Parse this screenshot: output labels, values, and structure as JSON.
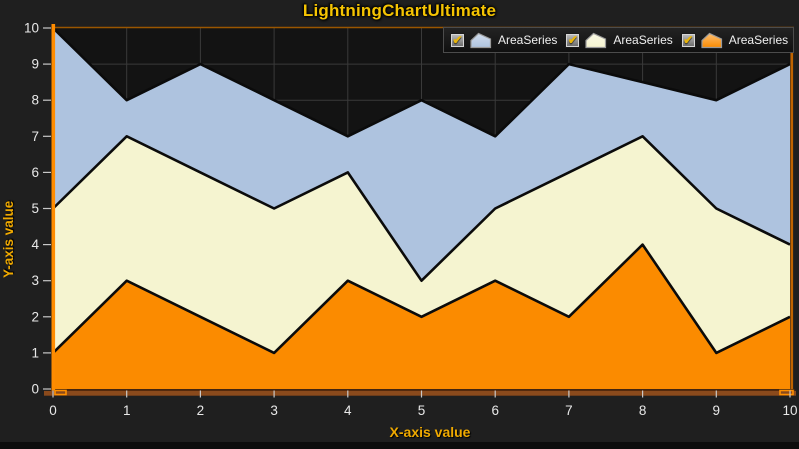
{
  "title": "LightningChartUltimate",
  "colors": {
    "outer_bg": "#1F1F1F",
    "plot_bg": "#131313",
    "grid": "#3A3A3A",
    "title_text": "#F5C402",
    "axis_label_text": "#EFA900",
    "tick_label_text": "#E8E8E8",
    "tick_mark": "#C8C8C8",
    "y_axis_line": "#FF8C00",
    "top_border": "#9A5600",
    "right_border": "#C06400",
    "x_axis_line_dark": "#53280A",
    "x_axis_strip": "#8A4A1C",
    "axis_nib": "#FF9000",
    "series_border": "#0B0B0B",
    "legend_text": "#F0F0F0",
    "checkmark": "#E9B50B"
  },
  "chart_data": {
    "type": "area",
    "mode": "overlapping",
    "title": "LightningChartUltimate",
    "xlabel": "X-axis value",
    "ylabel": "Y-axis value",
    "xlim": [
      0,
      10
    ],
    "ylim": [
      0,
      10
    ],
    "x_ticks": [
      0,
      1,
      2,
      3,
      4,
      5,
      6,
      7,
      8,
      9,
      10
    ],
    "y_ticks": [
      0,
      1,
      2,
      3,
      4,
      5,
      6,
      7,
      8,
      9,
      10
    ],
    "grid": true,
    "legend_position": "top-right",
    "x": [
      0,
      1,
      2,
      3,
      4,
      5,
      6,
      7,
      8,
      9,
      10
    ],
    "series": [
      {
        "name": "AreaSeries",
        "color": "#AEC3DF",
        "checked": true,
        "values": [
          10,
          8,
          9,
          8,
          7,
          8,
          7,
          9,
          8.5,
          8,
          9
        ]
      },
      {
        "name": "AreaSeries",
        "color": "#F5F4D0",
        "checked": true,
        "values": [
          5,
          7,
          6,
          5,
          6,
          3,
          5,
          6,
          7,
          5,
          4
        ]
      },
      {
        "name": "AreaSeries",
        "color": "#FB8B00",
        "checked": true,
        "values": [
          1,
          3,
          2,
          1,
          3,
          2,
          3,
          2,
          4,
          1,
          2
        ]
      }
    ]
  },
  "legend": {
    "checkmark_glyph": "✔"
  }
}
